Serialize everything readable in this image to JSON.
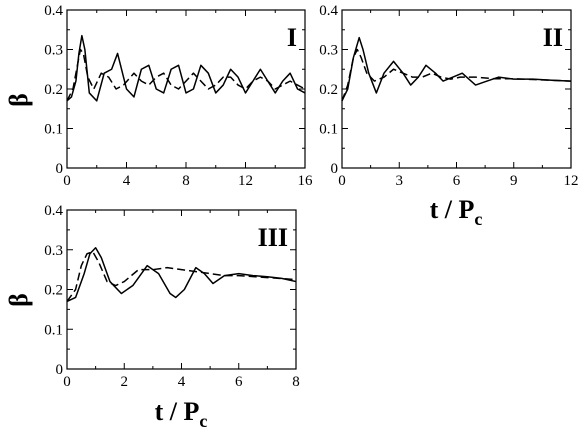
{
  "chart_data": [
    {
      "type": "line",
      "panel_label": "I",
      "xlabel": "",
      "ylabel": "β",
      "xlim": [
        0,
        16
      ],
      "ylim": [
        0,
        0.4
      ],
      "xticks": [
        "0",
        "4",
        "8",
        "12",
        "16"
      ],
      "yticks": [
        "0",
        "0.1",
        "0.2",
        "0.3",
        "0.4"
      ],
      "grid": false,
      "series": [
        {
          "style": "solid",
          "x": [
            0,
            0.3,
            0.6,
            0.8,
            1.0,
            1.2,
            1.5,
            2.0,
            2.5,
            3.0,
            3.4,
            4.0,
            4.5,
            5.0,
            5.5,
            6.0,
            6.5,
            7.0,
            7.5,
            8.0,
            8.5,
            9.0,
            9.5,
            10.0,
            10.5,
            11.0,
            11.5,
            12.0,
            12.5,
            13.0,
            13.5,
            14.0,
            14.5,
            15.0,
            15.5,
            16.0
          ],
          "y": [
            0.17,
            0.18,
            0.22,
            0.29,
            0.335,
            0.3,
            0.19,
            0.17,
            0.24,
            0.25,
            0.29,
            0.2,
            0.18,
            0.25,
            0.26,
            0.2,
            0.19,
            0.25,
            0.26,
            0.19,
            0.2,
            0.26,
            0.24,
            0.19,
            0.21,
            0.25,
            0.23,
            0.19,
            0.22,
            0.25,
            0.22,
            0.19,
            0.22,
            0.24,
            0.2,
            0.19
          ]
        },
        {
          "style": "dashed",
          "x": [
            0,
            0.4,
            0.7,
            0.9,
            1.1,
            1.4,
            1.8,
            2.3,
            2.8,
            3.3,
            3.8,
            4.5,
            5.0,
            5.5,
            6.0,
            6.5,
            7.0,
            7.5,
            8.0,
            8.5,
            9.0,
            9.5,
            10.0,
            10.5,
            11.0,
            11.5,
            12.0,
            12.5,
            13.0,
            13.5,
            14.0,
            14.5,
            15.0,
            15.5,
            16.0
          ],
          "y": [
            0.17,
            0.2,
            0.26,
            0.3,
            0.29,
            0.23,
            0.2,
            0.24,
            0.23,
            0.2,
            0.21,
            0.24,
            0.22,
            0.21,
            0.23,
            0.24,
            0.21,
            0.2,
            0.22,
            0.24,
            0.22,
            0.2,
            0.21,
            0.23,
            0.23,
            0.21,
            0.2,
            0.22,
            0.23,
            0.22,
            0.2,
            0.21,
            0.22,
            0.21,
            0.2
          ]
        }
      ]
    },
    {
      "type": "line",
      "panel_label": "II",
      "xlabel": "t / Pc",
      "ylabel": "",
      "xlim": [
        0,
        12
      ],
      "ylim": [
        0,
        0.4
      ],
      "xticks": [
        "0",
        "3",
        "6",
        "9",
        "12"
      ],
      "yticks": [
        "0",
        "0.1",
        "0.2",
        "0.3",
        "0.4"
      ],
      "grid": false,
      "series": [
        {
          "style": "solid",
          "x": [
            0,
            0.3,
            0.6,
            0.9,
            1.1,
            1.4,
            1.8,
            2.2,
            2.7,
            3.2,
            3.6,
            4.0,
            4.4,
            4.9,
            5.3,
            5.8,
            6.3,
            7.0,
            7.6,
            8.2,
            9.0,
            10.0,
            11.0,
            12.0
          ],
          "y": [
            0.17,
            0.2,
            0.28,
            0.33,
            0.3,
            0.24,
            0.19,
            0.24,
            0.27,
            0.24,
            0.21,
            0.23,
            0.26,
            0.24,
            0.22,
            0.23,
            0.24,
            0.21,
            0.22,
            0.23,
            0.225,
            0.225,
            0.222,
            0.22
          ]
        },
        {
          "style": "dashed",
          "x": [
            0,
            0.3,
            0.6,
            0.8,
            1.0,
            1.3,
            1.7,
            2.2,
            2.7,
            3.2,
            3.7,
            4.2,
            4.7,
            5.2,
            5.7,
            6.2,
            7.0,
            8.0,
            9.0,
            10.0,
            11.0,
            12.0
          ],
          "y": [
            0.17,
            0.21,
            0.28,
            0.3,
            0.28,
            0.24,
            0.22,
            0.23,
            0.25,
            0.24,
            0.23,
            0.23,
            0.24,
            0.23,
            0.225,
            0.23,
            0.23,
            0.226,
            0.226,
            0.224,
            0.222,
            0.22
          ]
        }
      ]
    },
    {
      "type": "line",
      "panel_label": "III",
      "xlabel": "t / Pc",
      "ylabel": "β",
      "xlim": [
        0,
        8
      ],
      "ylim": [
        0,
        0.4
      ],
      "xticks": [
        "0",
        "2",
        "4",
        "6",
        "8"
      ],
      "yticks": [
        "0",
        "0.1",
        "0.2",
        "0.3",
        "0.4"
      ],
      "grid": false,
      "series": [
        {
          "style": "solid",
          "x": [
            0,
            0.3,
            0.6,
            0.8,
            1.0,
            1.2,
            1.5,
            1.9,
            2.3,
            2.8,
            3.2,
            3.6,
            3.8,
            4.1,
            4.5,
            4.8,
            5.1,
            5.5,
            6.0,
            6.5,
            7.0,
            7.5,
            8.0
          ],
          "y": [
            0.17,
            0.18,
            0.24,
            0.29,
            0.305,
            0.28,
            0.22,
            0.19,
            0.21,
            0.26,
            0.24,
            0.19,
            0.18,
            0.2,
            0.255,
            0.24,
            0.215,
            0.235,
            0.24,
            0.235,
            0.232,
            0.228,
            0.22
          ]
        },
        {
          "style": "dashed",
          "x": [
            0,
            0.3,
            0.5,
            0.7,
            0.9,
            1.1,
            1.4,
            1.7,
            2.0,
            2.5,
            3.0,
            3.5,
            4.0,
            4.5,
            5.0,
            5.5,
            6.0,
            7.0,
            8.0
          ],
          "y": [
            0.17,
            0.2,
            0.26,
            0.29,
            0.295,
            0.27,
            0.22,
            0.21,
            0.22,
            0.25,
            0.25,
            0.255,
            0.25,
            0.245,
            0.24,
            0.235,
            0.235,
            0.23,
            0.225
          ]
        }
      ]
    }
  ]
}
